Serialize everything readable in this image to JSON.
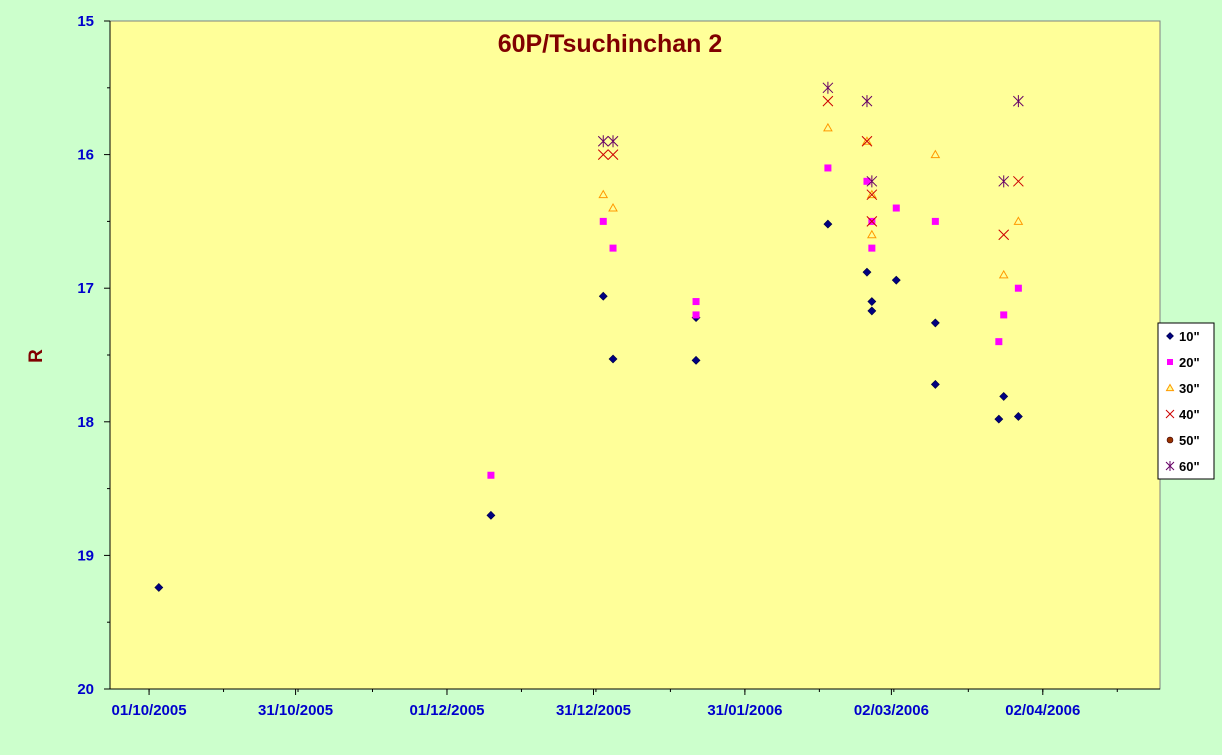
{
  "chart_data": {
    "type": "scatter",
    "title": "60P/Tsuchinchan 2",
    "xlabel": "",
    "ylabel": "R",
    "y_inverted": true,
    "ylim": [
      15,
      20
    ],
    "yticks": [
      "15",
      "16",
      "17",
      "18",
      "19",
      "20"
    ],
    "xlim": [
      "2005-09-23",
      "2006-04-26"
    ],
    "xtick_dates": [
      "2005-10-01",
      "2005-10-31",
      "2005-12-01",
      "2005-12-31",
      "2006-01-31",
      "2006-03-02",
      "2006-04-02"
    ],
    "xtick_labels": [
      "01/10/2005",
      "31/10/2005",
      "01/12/2005",
      "31/12/2005",
      "31/01/2006",
      "02/03/2006",
      "02/04/2006"
    ],
    "grid": false,
    "legend_position": "right",
    "plot_background": "#ffff99",
    "page_background": "#ccffcc",
    "series": [
      {
        "name": "10\"",
        "marker": "diamond",
        "color": "#000080",
        "points": [
          {
            "x": "2005-10-03",
            "y": 19.24
          },
          {
            "x": "2005-12-10",
            "y": 18.7
          },
          {
            "x": "2006-01-02",
            "y": 17.06
          },
          {
            "x": "2006-01-04",
            "y": 17.53
          },
          {
            "x": "2006-01-21",
            "y": 17.22
          },
          {
            "x": "2006-01-21",
            "y": 17.54
          },
          {
            "x": "2006-02-17",
            "y": 16.52
          },
          {
            "x": "2006-02-25",
            "y": 16.88
          },
          {
            "x": "2006-02-26",
            "y": 17.1
          },
          {
            "x": "2006-02-26",
            "y": 17.17
          },
          {
            "x": "2006-03-03",
            "y": 16.94
          },
          {
            "x": "2006-03-11",
            "y": 17.26
          },
          {
            "x": "2006-03-11",
            "y": 17.72
          },
          {
            "x": "2006-03-24",
            "y": 17.98
          },
          {
            "x": "2006-03-25",
            "y": 17.81
          },
          {
            "x": "2006-03-28",
            "y": 17.96
          }
        ]
      },
      {
        "name": "20\"",
        "marker": "square",
        "color": "#ff00ff",
        "points": [
          {
            "x": "2005-12-10",
            "y": 18.4
          },
          {
            "x": "2006-01-02",
            "y": 16.5
          },
          {
            "x": "2006-01-04",
            "y": 16.7
          },
          {
            "x": "2006-01-21",
            "y": 17.1
          },
          {
            "x": "2006-01-21",
            "y": 17.2
          },
          {
            "x": "2006-02-17",
            "y": 16.1
          },
          {
            "x": "2006-02-25",
            "y": 16.2
          },
          {
            "x": "2006-02-26",
            "y": 16.5
          },
          {
            "x": "2006-02-26",
            "y": 16.7
          },
          {
            "x": "2006-03-03",
            "y": 16.4
          },
          {
            "x": "2006-03-11",
            "y": 16.5
          },
          {
            "x": "2006-03-24",
            "y": 17.4
          },
          {
            "x": "2006-03-25",
            "y": 17.2
          },
          {
            "x": "2006-03-28",
            "y": 17.0
          }
        ]
      },
      {
        "name": "30\"",
        "marker": "triangle",
        "color": "#ff9900",
        "points": [
          {
            "x": "2006-01-02",
            "y": 16.3
          },
          {
            "x": "2006-01-04",
            "y": 16.4
          },
          {
            "x": "2006-02-17",
            "y": 15.8
          },
          {
            "x": "2006-02-25",
            "y": 15.9
          },
          {
            "x": "2006-02-26",
            "y": 16.3
          },
          {
            "x": "2006-02-26",
            "y": 16.6
          },
          {
            "x": "2006-03-11",
            "y": 16.0
          },
          {
            "x": "2006-03-25",
            "y": 16.9
          },
          {
            "x": "2006-03-28",
            "y": 16.5
          }
        ]
      },
      {
        "name": "40\"",
        "marker": "x",
        "color": "#cc0000",
        "points": [
          {
            "x": "2006-01-02",
            "y": 16.0
          },
          {
            "x": "2006-01-04",
            "y": 16.0
          },
          {
            "x": "2006-02-17",
            "y": 15.6
          },
          {
            "x": "2006-02-25",
            "y": 15.9
          },
          {
            "x": "2006-02-26",
            "y": 16.3
          },
          {
            "x": "2006-02-26",
            "y": 16.5
          },
          {
            "x": "2006-03-25",
            "y": 16.6
          },
          {
            "x": "2006-03-28",
            "y": 16.2
          }
        ]
      },
      {
        "name": "50\"",
        "marker": "circle",
        "color": "#993300",
        "points": []
      },
      {
        "name": "60\"",
        "marker": "asterisk",
        "color": "#660066",
        "points": [
          {
            "x": "2006-01-02",
            "y": 15.9
          },
          {
            "x": "2006-01-04",
            "y": 15.9
          },
          {
            "x": "2006-02-17",
            "y": 15.5
          },
          {
            "x": "2006-02-25",
            "y": 15.6
          },
          {
            "x": "2006-02-26",
            "y": 16.2
          },
          {
            "x": "2006-03-25",
            "y": 16.2
          },
          {
            "x": "2006-03-28",
            "y": 15.6
          }
        ]
      }
    ]
  }
}
